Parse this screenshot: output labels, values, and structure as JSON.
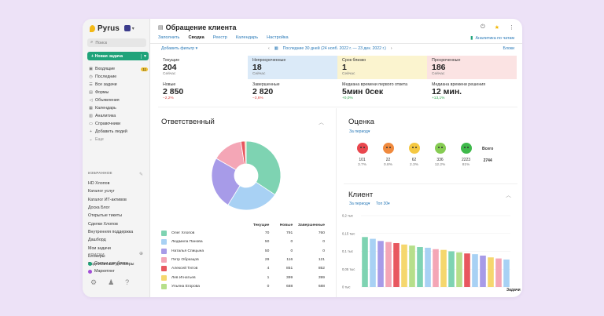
{
  "sidebar": {
    "logo": "Pyrus",
    "search_placeholder": "Поиск",
    "new_task": "+ Новая задача",
    "nav": [
      {
        "label": "Входящие",
        "icon": "inbox-icon",
        "badge": "11"
      },
      {
        "label": "Последние",
        "icon": "clock-icon"
      },
      {
        "label": "Все задачи",
        "icon": "tasks-icon"
      },
      {
        "label": "Формы",
        "icon": "forms-icon"
      },
      {
        "label": "Объявления",
        "icon": "megaphone-icon"
      },
      {
        "label": "Календарь",
        "icon": "calendar-icon"
      },
      {
        "label": "Аналитика",
        "icon": "chart-icon"
      },
      {
        "label": "Справочники",
        "icon": "book-icon"
      },
      {
        "label": "Добавить людей",
        "icon": "add-user-icon"
      },
      {
        "label": "Еще",
        "icon": "chevron-down-icon"
      }
    ],
    "favorites_label": "ИЗБРАННОЕ",
    "favorites": [
      "HD Хлопов",
      "Каталог услуг",
      "Каталог ИТ-активов",
      "Доска Блог",
      "Открытые тикеты",
      "Сделки Хлопов",
      "Внутренняя поддержка",
      "Дашборд",
      "Мои задачи",
      "Блокеры",
      "Подписанные договоры"
    ],
    "lists_label": "СПИСКИ",
    "lists": [
      {
        "label": "Статьи для блога",
        "color": "#1fa37a"
      },
      {
        "label": "Маркетинг",
        "color": "#a24fd6"
      }
    ]
  },
  "header": {
    "title": "Обращение клиента",
    "tabs": [
      "Заполнить",
      "Сводка",
      "Реестр",
      "Календарь",
      "Настройка"
    ],
    "active_tab": "Сводка",
    "analytics_link": "Аналитика по чатам",
    "add_filter": "Добавить фильтр",
    "period": "Последние 30 дней (24 нояб. 2022 г. — 23 дек. 2022 г.)",
    "blocks": "Блоки"
  },
  "stats": [
    {
      "label": "Текущие",
      "value": "204",
      "sub": "Сейчас",
      "bg": "#ffffff"
    },
    {
      "label": "Непросроченные",
      "value": "18",
      "sub": "Сейчас",
      "bg": "#dbeaf8"
    },
    {
      "label": "Срок близко",
      "value": "1",
      "sub": "Сейчас",
      "bg": "#fbf4cf"
    },
    {
      "label": "Просроченные",
      "value": "186",
      "sub": "Сейчас",
      "bg": "#fbe3e3"
    },
    {
      "label": "Новые",
      "value": "2 850",
      "delta": "−2,2%",
      "dir": "dn"
    },
    {
      "label": "Завершенные",
      "value": "2 820",
      "delta": "−3,6%",
      "dir": "dn"
    },
    {
      "label": "Медиана времени первого ответа",
      "value": "5мин 0сек",
      "delta": "+0,0%",
      "dir": "up"
    },
    {
      "label": "Медиана времени решения",
      "value": "12 мин.",
      "delta": "+13,1%",
      "dir": "up"
    }
  ],
  "responsible": {
    "title": "Ответственный",
    "columns": [
      "Текущие",
      "Новые",
      "Завершенные"
    ],
    "rows": [
      {
        "name": "Олег Хлопов",
        "current": "70",
        "new": "791",
        "done": "760",
        "color": "#7ed3b2"
      },
      {
        "name": "Людмила Панова",
        "current": "50",
        "new": "0",
        "done": "0",
        "color": "#a8d1f4"
      },
      {
        "name": "Наталья Спицына",
        "current": "50",
        "new": "0",
        "done": "0",
        "color": "#a79be8"
      },
      {
        "name": "Петр Образцов",
        "current": "29",
        "new": "116",
        "done": "121",
        "color": "#f4a6b6"
      },
      {
        "name": "Алексей Титов",
        "current": "4",
        "new": "851",
        "done": "852",
        "color": "#e8575f"
      },
      {
        "name": "Лев Игнатьев",
        "current": "1",
        "new": "399",
        "done": "399",
        "color": "#f5d76e"
      },
      {
        "name": "Ульяна Егорова",
        "current": "0",
        "new": "688",
        "done": "688",
        "color": "#b6df8a"
      }
    ]
  },
  "rating": {
    "title": "Оценка",
    "period_link": "За период",
    "total_label": "Всего",
    "total": "2744",
    "items": [
      {
        "count": "101",
        "pct": "3.7%",
        "color": "#e9474e"
      },
      {
        "count": "22",
        "pct": "0.8%",
        "color": "#f08a3e"
      },
      {
        "count": "62",
        "pct": "2.3%",
        "color": "#f5c842"
      },
      {
        "count": "336",
        "pct": "12.2%",
        "color": "#86cc53"
      },
      {
        "count": "2223",
        "pct": "81%",
        "color": "#3fb94b"
      }
    ]
  },
  "chart_data": {
    "type": "bar",
    "title": "Клиент",
    "xlabel": "Задачи",
    "ylabel": "",
    "yticks": [
      "0,2 тыс",
      "0,15 тыс",
      "0,1 тыс",
      "0,05 тыс",
      "0 тыс"
    ],
    "ylim": [
      0,
      200
    ],
    "values": [
      140,
      135,
      129,
      126,
      123,
      119,
      116,
      112,
      110,
      106,
      104,
      100,
      97,
      94,
      92,
      88,
      83,
      80,
      77
    ],
    "colors": [
      "#7ed3b2",
      "#a8d1f4",
      "#a79be8",
      "#f4a6b6",
      "#e8575f",
      "#f5d76e",
      "#b6df8a",
      "#7ed3b2",
      "#a8d1f4",
      "#f4a6b6",
      "#f5d76e",
      "#7ed3b2",
      "#b6df8a",
      "#e8575f",
      "#a8d1f4",
      "#a79be8",
      "#f5d76e",
      "#f4a6b6",
      "#a8d1f4"
    ]
  },
  "client_links": {
    "period": "За период",
    "top": "Топ 30"
  }
}
